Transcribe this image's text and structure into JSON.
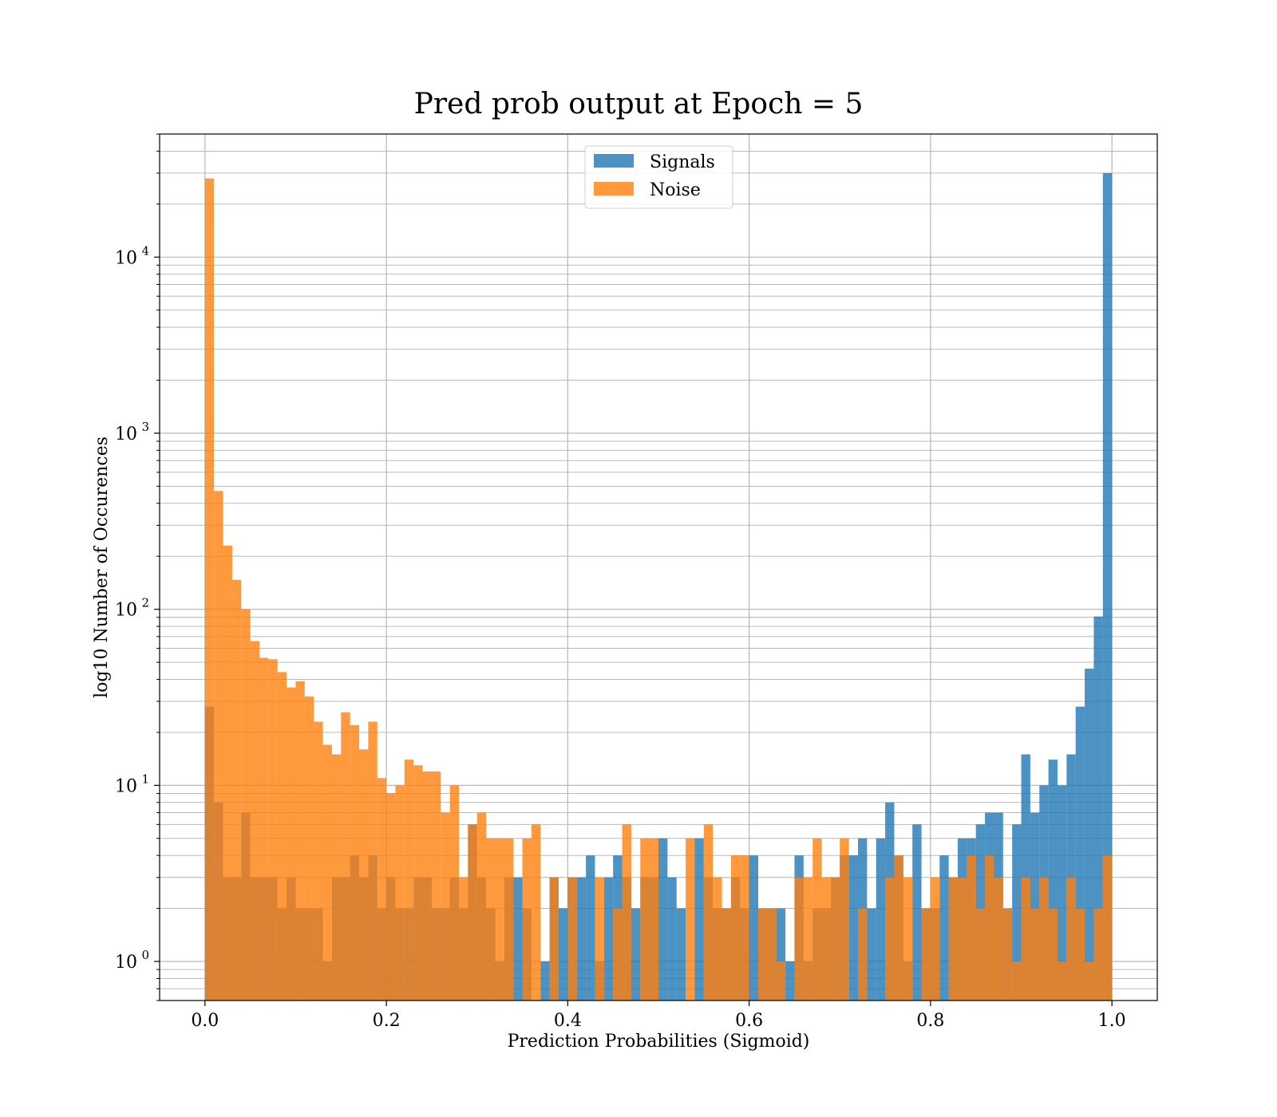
{
  "chart_data": {
    "type": "bar",
    "title": "Pred prob output at Epoch = 5",
    "xlabel": "Prediction Probabilities (Sigmoid)",
    "ylabel": "log10 Number of Occurences",
    "xlim": [
      -0.05,
      1.05
    ],
    "ylim": [
      0.6,
      50000
    ],
    "yscale": "log",
    "grid": true,
    "legend_position": "top-center",
    "bin_start": 0.0,
    "bin_width": 0.01,
    "x_ticks": [
      "0.0",
      "0.2",
      "0.4",
      "0.6",
      "0.8",
      "1.0"
    ],
    "x_tick_values": [
      0.0,
      0.2,
      0.4,
      0.6,
      0.8,
      1.0
    ],
    "y_ticks": [
      {
        "value": 1,
        "base": "10",
        "exp": "0"
      },
      {
        "value": 10,
        "base": "10",
        "exp": "1"
      },
      {
        "value": 100,
        "base": "10",
        "exp": "2"
      },
      {
        "value": 1000,
        "base": "10",
        "exp": "3"
      },
      {
        "value": 10000,
        "base": "10",
        "exp": "4"
      }
    ],
    "series": [
      {
        "name": "Signals",
        "color": "#1f77b4",
        "values": [
          28,
          8,
          3,
          3,
          7,
          3,
          3,
          3,
          2,
          3,
          2,
          2,
          2,
          1,
          3,
          3,
          4,
          3,
          4,
          2,
          3,
          2,
          2,
          3,
          3,
          2,
          2,
          3,
          2,
          6,
          3,
          2,
          1,
          3,
          3,
          2,
          0,
          1,
          3,
          2,
          3,
          3,
          4,
          1,
          3,
          4,
          3,
          2,
          3,
          3,
          5,
          3,
          2,
          0,
          5,
          3,
          2,
          2,
          3,
          2,
          4,
          2,
          2,
          2,
          1,
          4,
          1,
          2,
          2,
          3,
          4,
          4,
          5,
          2,
          5,
          8,
          4,
          1,
          6,
          2,
          2,
          4,
          3,
          5,
          5,
          6,
          7,
          7,
          2,
          6,
          15,
          7,
          10,
          14,
          10,
          15,
          28,
          46,
          91,
          30000
        ]
      },
      {
        "name": "Noise",
        "color": "#ff7f0e",
        "values": [
          28000,
          470,
          230,
          147,
          100,
          66,
          53,
          52,
          44,
          36,
          39,
          32,
          23,
          17,
          15,
          26,
          22,
          16,
          23,
          11,
          9,
          10,
          14,
          13,
          12,
          12,
          7,
          10,
          3,
          6,
          7,
          5,
          5,
          5,
          0,
          5,
          6,
          0,
          3,
          0,
          3,
          0,
          0,
          3,
          0,
          2,
          6,
          0,
          5,
          5,
          0,
          0,
          0,
          5,
          0,
          6,
          3,
          2,
          4,
          4,
          0,
          2,
          2,
          1,
          0,
          3,
          3,
          5,
          3,
          3,
          5,
          0,
          2,
          0,
          0,
          3,
          4,
          3,
          0,
          2,
          3,
          0,
          3,
          3,
          4,
          2,
          4,
          3,
          2,
          1,
          3,
          2,
          3,
          2,
          1,
          3,
          2,
          1,
          2,
          4
        ]
      }
    ]
  }
}
